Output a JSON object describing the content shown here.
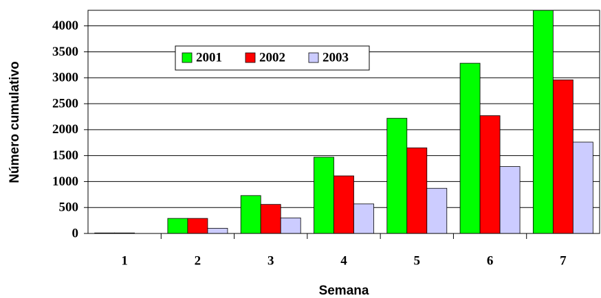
{
  "chart_data": {
    "type": "bar",
    "x_label": "Semana",
    "y_label": "Número cumulativo",
    "categories": [
      "1",
      "2",
      "3",
      "4",
      "5",
      "6",
      "7"
    ],
    "series": [
      {
        "name": "2001",
        "color": "#00ff00",
        "values": [
          10,
          290,
          730,
          1470,
          2220,
          3280,
          4300
        ]
      },
      {
        "name": "2002",
        "color": "#ff0000",
        "values": [
          10,
          290,
          560,
          1110,
          1650,
          2270,
          2960
        ]
      },
      {
        "name": "2003",
        "color": "#ccccff",
        "values": [
          0,
          100,
          300,
          570,
          870,
          1290,
          1760
        ]
      }
    ],
    "ylim": [
      0,
      4300
    ],
    "yticks": [
      0,
      500,
      1000,
      1500,
      2000,
      2500,
      3000,
      3500,
      4000
    ],
    "grid": true,
    "legend": "top-left"
  }
}
